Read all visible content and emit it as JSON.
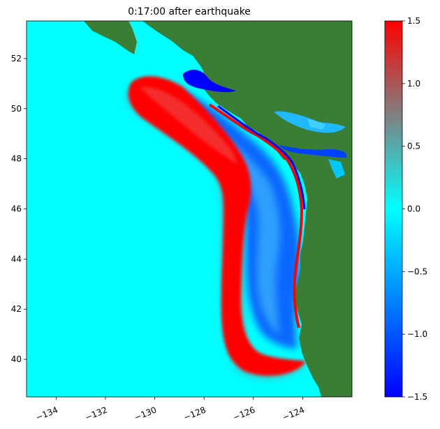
{
  "chart_data": [
    {
      "type": "heatmap",
      "title": "0:17:00 after earthquake",
      "xlim": [
        -135.2,
        -122.0
      ],
      "ylim": [
        38.5,
        53.5
      ],
      "x_ticks": [
        -134,
        -132,
        -130,
        -128,
        -126,
        -124
      ],
      "x_tick_labels": [
        "−134",
        "−132",
        "−130",
        "−128",
        "−126",
        "−124"
      ],
      "y_ticks": [
        40,
        42,
        44,
        46,
        48,
        50,
        52
      ],
      "y_tick_labels": [
        "40",
        "42",
        "44",
        "46",
        "48",
        "50",
        "52"
      ],
      "land_color": "#3a7d35",
      "ocean_zero_color": "#00ffff",
      "wave_front": {
        "crest_path_lonlat": [
          [
            -130.8,
            50.6
          ],
          [
            -129.5,
            49.6
          ],
          [
            -128.2,
            48.3
          ],
          [
            -127.2,
            46.6
          ],
          [
            -127.0,
            44.5
          ],
          [
            -127.1,
            42.0
          ],
          [
            -126.6,
            40.0
          ],
          [
            -125.8,
            39.4
          ]
        ],
        "peak_value": 1.5,
        "trough_value": -1.5
      },
      "colorbar": {
        "vmin": -1.5,
        "vmax": 1.5,
        "ticks": [
          -1.5,
          -1.0,
          -0.5,
          0.0,
          0.5,
          1.0,
          1.5
        ],
        "tick_labels": [
          "−1.5",
          "−1.0",
          "−0.5",
          "0.0",
          "0.5",
          "1.0",
          "1.5"
        ],
        "colors": [
          "#0000ff",
          "#0080ff",
          "#00ffff",
          "#808080",
          "#ff0000"
        ]
      }
    }
  ]
}
